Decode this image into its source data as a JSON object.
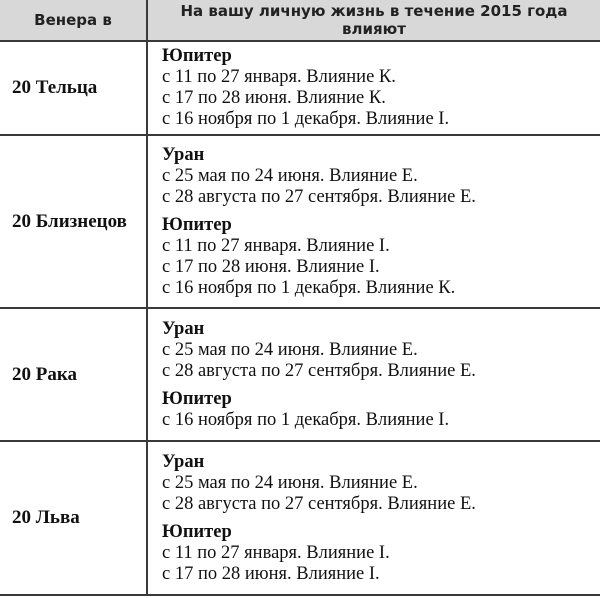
{
  "header": {
    "col1": "Венера в",
    "col2": "На вашу личную жизнь в течение 2015 года влияют"
  },
  "rows": [
    {
      "venus": "20 Тельца",
      "groups": [
        {
          "planet": "Юпитер",
          "lines": [
            "с 11 по 27 января. Влияние К.",
            "с 17 по 28 июня. Влияние К.",
            "с 16 ноября по 1 декабря. Влияние I."
          ]
        }
      ]
    },
    {
      "venus": "20 Близнецов",
      "groups": [
        {
          "planet": "Уран",
          "lines": [
            "с 25 мая по 24 июня. Влияние Е.",
            "с 28 августа по 27 сентября. Влияние Е."
          ]
        },
        {
          "planet": "Юпитер",
          "lines": [
            "с 11 по 27 января. Влияние I.",
            "с 17 по 28 июня. Влияние I.",
            "с 16 ноября по 1 декабря. Влияние К."
          ]
        }
      ]
    },
    {
      "venus": "20 Рака",
      "groups": [
        {
          "planet": "Уран",
          "lines": [
            "с 25 мая по 24 июня. Влияние Е.",
            "с 28 августа по 27 сентября. Влияние Е."
          ]
        },
        {
          "planet": "Юпитер",
          "lines": [
            "с 16 ноября по 1 декабря. Влияние I."
          ]
        }
      ]
    },
    {
      "venus": "20 Льва",
      "groups": [
        {
          "planet": "Уран",
          "lines": [
            "с 25 мая по 24 июня. Влияние Е.",
            "с 28 августа по 27 сентября. Влияние Е."
          ]
        },
        {
          "planet": "Юпитер",
          "lines": [
            "с 11 по 27 января. Влияние I.",
            "с 17 по 28 июня. Влияние I."
          ]
        }
      ]
    }
  ]
}
